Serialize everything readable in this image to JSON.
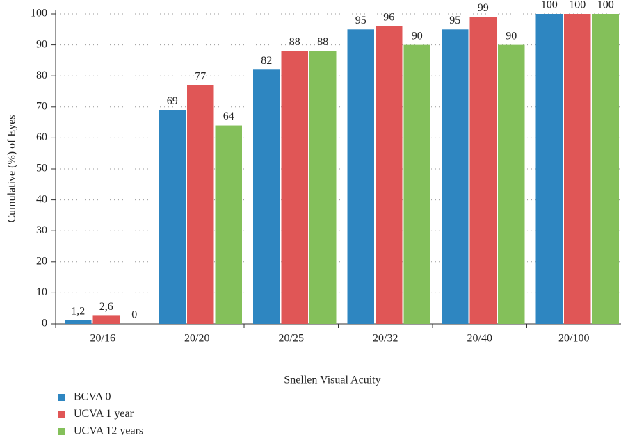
{
  "chart_data": {
    "type": "bar",
    "xlabel": "Snellen Visual Acuity",
    "ylabel": "Cumulative (%) of Eyes",
    "categories": [
      "20/16",
      "20/20",
      "20/25",
      "20/32",
      "20/40",
      "20/100"
    ],
    "series": [
      {
        "name": "BCVA 0",
        "color": "#2e86c1",
        "values": [
          1.2,
          69,
          82,
          95,
          95,
          100
        ],
        "value_labels": [
          "1,2",
          "69",
          "82",
          "95",
          "95",
          "100"
        ]
      },
      {
        "name": "UCVA 1 year",
        "color": "#e05656",
        "values": [
          2.6,
          77,
          88,
          96,
          99,
          100
        ],
        "value_labels": [
          "2,6",
          "77",
          "88",
          "96",
          "99",
          "100"
        ]
      },
      {
        "name": "UCVA 12 years",
        "color": "#84c05a",
        "values": [
          0,
          64,
          88,
          90,
          90,
          100
        ],
        "value_labels": [
          "0",
          "64",
          "88",
          "90",
          "90",
          "100"
        ]
      }
    ],
    "ylim": [
      0,
      100
    ],
    "yticks": [
      0,
      10,
      20,
      30,
      40,
      50,
      60,
      70,
      80,
      90,
      100
    ],
    "grid": true
  }
}
